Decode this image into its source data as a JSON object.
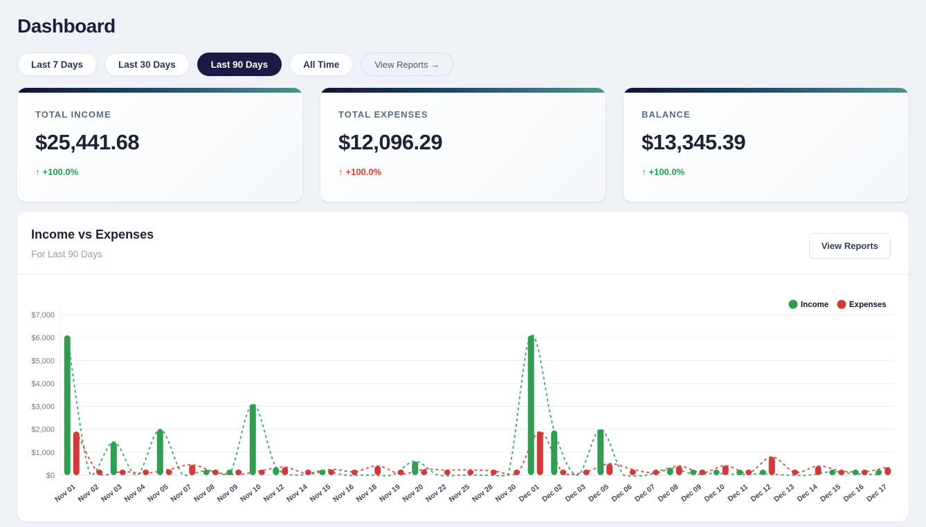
{
  "page": {
    "title": "Dashboard"
  },
  "filters": {
    "items": [
      {
        "label": "Last 7 Days",
        "selected": false
      },
      {
        "label": "Last 30 Days",
        "selected": false
      },
      {
        "label": "Last 90 Days",
        "selected": true
      },
      {
        "label": "All Time",
        "selected": false
      }
    ],
    "view_reports_label": "View Reports →"
  },
  "stats": [
    {
      "label": "TOTAL INCOME",
      "value": "$25,441.68",
      "arrow": "↑",
      "trend": "+100.0%",
      "trend_color": "#1fa352"
    },
    {
      "label": "TOTAL EXPENSES",
      "value": "$12,096.29",
      "arrow": "↑",
      "trend": "+100.0%",
      "trend_color": "#e03c36"
    },
    {
      "label": "BALANCE",
      "value": "$13,345.39",
      "arrow": "↑",
      "trend": "+100.0%",
      "trend_color": "#1fa352"
    }
  ],
  "chart_card": {
    "title": "Income vs Expenses",
    "subtitle": "For Last 90 Days",
    "button_label": "View Reports"
  },
  "chart_data": {
    "type": "bar",
    "title": "Income vs Expenses",
    "categories": [
      "Nov 01",
      "Nov 02",
      "Nov 03",
      "Nov 04",
      "Nov 05",
      "Nov 07",
      "Nov 08",
      "Nov 09",
      "Nov 10",
      "Nov 12",
      "Nov 14",
      "Nov 15",
      "Nov 16",
      "Nov 18",
      "Nov 19",
      "Nov 20",
      "Nov 22",
      "Nov 25",
      "Nov 28",
      "Nov 30",
      "Dec 01",
      "Dec 02",
      "Dec 03",
      "Dec 05",
      "Dec 06",
      "Dec 07",
      "Dec 08",
      "Dec 09",
      "Dec 10",
      "Dec 11",
      "Dec 12",
      "Dec 13",
      "Dec 14",
      "Dec 15",
      "Dec 16",
      "Dec 17"
    ],
    "series": [
      {
        "name": "Income",
        "color": "#2f9e50",
        "values": [
          6100,
          0,
          1450,
          0,
          2000,
          0,
          200,
          50,
          3100,
          350,
          0,
          200,
          0,
          0,
          0,
          600,
          0,
          0,
          0,
          0,
          6100,
          1950,
          0,
          2000,
          0,
          0,
          300,
          50,
          80,
          30,
          60,
          0,
          0,
          150,
          50,
          30
        ]
      },
      {
        "name": "Expenses",
        "color": "#cf3b3b",
        "values": [
          1900,
          30,
          150,
          80,
          250,
          450,
          130,
          30,
          200,
          350,
          50,
          250,
          150,
          400,
          50,
          250,
          220,
          230,
          180,
          60,
          1900,
          80,
          150,
          500,
          250,
          100,
          400,
          100,
          420,
          100,
          800,
          120,
          400,
          180,
          150,
          350
        ]
      }
    ],
    "xlabel": "",
    "ylabel": "",
    "ylim": [
      0,
      7000
    ],
    "ytick_step": 1000,
    "ytick_prefix": "$",
    "grid": true,
    "legend_position": "top-right",
    "overlay": "dashed-spline-per-series"
  }
}
